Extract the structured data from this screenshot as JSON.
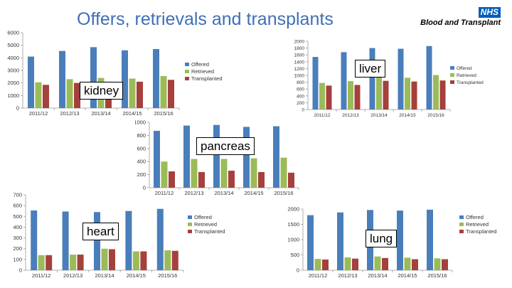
{
  "slide": {
    "title": "Offers, retrievals and transplants",
    "logo": {
      "nhs": "NHS",
      "text": "Blood and Transplant"
    }
  },
  "colors": {
    "offered": "#4a7ebb",
    "retrieved": "#9bbb59",
    "transplanted": "#a5403d"
  },
  "chart_data": [
    {
      "id": "kidney",
      "type": "bar",
      "callout": "kidney",
      "categories": [
        "2011/12",
        "2012/13",
        "2013/14",
        "2014/15",
        "2015/16"
      ],
      "series": [
        {
          "name": "Offered",
          "values": [
            4100,
            4550,
            4850,
            4600,
            4700
          ]
        },
        {
          "name": "Retrieved",
          "values": [
            2050,
            2300,
            2400,
            2350,
            2550
          ]
        },
        {
          "name": "Transplanted",
          "values": [
            1850,
            2000,
            2100,
            2100,
            2250
          ]
        }
      ],
      "yticks": [
        "0",
        "1000",
        "2000",
        "3000",
        "4000",
        "5000",
        "6000"
      ],
      "ylim": [
        0,
        6000
      ],
      "grid": false,
      "legend": "right"
    },
    {
      "id": "liver",
      "type": "bar",
      "callout": "liver",
      "categories": [
        "2011/12",
        "2012/13",
        "2013/14",
        "2014/15",
        "2015/16"
      ],
      "series": [
        {
          "name": "Offered",
          "values": [
            1540,
            1680,
            1800,
            1780,
            1860
          ]
        },
        {
          "name": "Retrieved",
          "values": [
            780,
            830,
            940,
            930,
            1010
          ]
        },
        {
          "name": "Transplanted",
          "values": [
            700,
            720,
            840,
            820,
            850
          ]
        }
      ],
      "yticks": [
        "0",
        "200",
        "400",
        "600",
        "800",
        "1000",
        "1200",
        "1400",
        "1600",
        "1800",
        "2000"
      ],
      "ylim": [
        0,
        2000
      ],
      "grid": false,
      "legend": "right"
    },
    {
      "id": "pancreas",
      "type": "bar",
      "callout": "pancreas",
      "categories": [
        "2011/12",
        "2012/13",
        "2013/14",
        "2014/15",
        "2015/16"
      ],
      "series": [
        {
          "name": "Offered",
          "values": [
            870,
            950,
            960,
            930,
            940
          ]
        },
        {
          "name": "Retrieved",
          "values": [
            400,
            440,
            440,
            450,
            460
          ]
        },
        {
          "name": "Transplanted",
          "values": [
            250,
            240,
            260,
            240,
            230
          ]
        }
      ],
      "yticks": [
        "0",
        "200",
        "400",
        "600",
        "800",
        "1000"
      ],
      "ylim": [
        0,
        1000
      ],
      "grid": false,
      "legend": "right"
    },
    {
      "id": "heart",
      "type": "bar",
      "callout": "heart",
      "categories": [
        "2011/12",
        "2012/13",
        "2013/14",
        "2014/15",
        "2015/16"
      ],
      "series": [
        {
          "name": "Offered",
          "values": [
            555,
            545,
            540,
            550,
            570
          ]
        },
        {
          "name": "Retrieved",
          "values": [
            140,
            145,
            200,
            175,
            185
          ]
        },
        {
          "name": "Transplanted",
          "values": [
            140,
            145,
            195,
            175,
            180
          ]
        }
      ],
      "yticks": [
        "0",
        "100",
        "200",
        "300",
        "400",
        "500",
        "600",
        "700"
      ],
      "ylim": [
        0,
        700
      ],
      "grid": false,
      "legend": "right"
    },
    {
      "id": "lung",
      "type": "bar",
      "callout": "lung",
      "categories": [
        "2011/12",
        "2012/13",
        "2013/14",
        "2014/15",
        "2015/16"
      ],
      "series": [
        {
          "name": "Offered",
          "values": [
            1800,
            1890,
            1970,
            1950,
            1980
          ]
        },
        {
          "name": "Retrieved",
          "values": [
            370,
            420,
            450,
            410,
            390
          ]
        },
        {
          "name": "Transplanted",
          "values": [
            350,
            380,
            400,
            360,
            360
          ]
        }
      ],
      "yticks": [
        "0",
        "500",
        "1000",
        "1500",
        "2000"
      ],
      "ylim": [
        0,
        2000
      ],
      "grid": false,
      "legend": "right"
    }
  ]
}
